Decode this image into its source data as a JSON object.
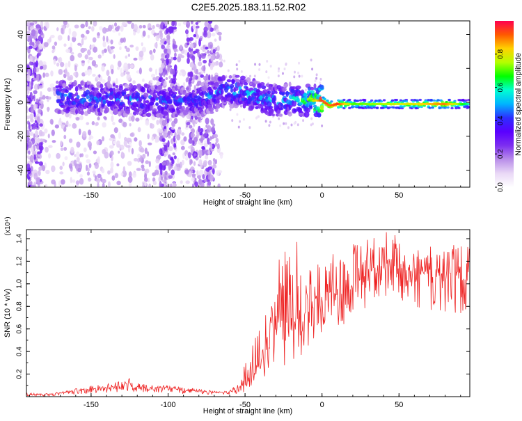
{
  "title": "C2E5.2025.183.11.52.R02",
  "colors": {
    "snr_line": "#ee2222",
    "spectrum_ramp": [
      "#ffffff",
      "#e9d8f6",
      "#b98ee9",
      "#7d2ff0",
      "#5a00ff",
      "#2d2dff",
      "#00b4ff",
      "#00ffd2",
      "#00ff00",
      "#b4ff00",
      "#ffd200",
      "#ff5a00",
      "#ff0050"
    ]
  },
  "chart_data": [
    {
      "type": "heatmap",
      "xlabel": "Height of straight line (km)",
      "ylabel": "Frequency (Hz)",
      "xlim": [
        -192,
        96
      ],
      "ylim": [
        -50,
        48
      ],
      "x_ticks": [
        -150,
        -100,
        -50,
        0,
        50
      ],
      "x_tick_labels": [
        "-150",
        "-100",
        "-50",
        "0",
        "50"
      ],
      "y_ticks": [
        -40,
        -20,
        0,
        20,
        40
      ],
      "y_tick_labels": [
        "-40",
        "-20",
        "0",
        "20",
        "40"
      ],
      "colorbar": {
        "label": "Normalized spectral amplitude",
        "range": [
          0.0,
          1.0
        ],
        "ticks": [
          0.0,
          0.2,
          0.4,
          0.6,
          0.8
        ],
        "tick_labels": [
          "0.0",
          "0.2",
          "0.4",
          "0.6",
          "0.8"
        ]
      },
      "ridge": {
        "description_x": [
          -170,
          -140,
          -110,
          -80,
          -65,
          -50,
          -40,
          -30,
          -20,
          -10,
          0,
          5,
          10,
          20,
          40,
          60,
          80,
          95
        ],
        "frequency_hz": [
          3,
          2,
          1,
          1,
          7,
          6,
          3,
          1,
          2,
          1,
          1,
          -2,
          -1,
          -1,
          -1,
          -1,
          -1,
          -1
        ],
        "peak_amplitude": [
          0.45,
          0.45,
          0.45,
          0.4,
          0.45,
          0.5,
          0.5,
          0.5,
          0.5,
          0.6,
          0.95,
          0.9,
          0.95,
          0.7,
          0.75,
          0.8,
          0.9,
          0.6
        ]
      }
    },
    {
      "type": "line",
      "xlabel": "Height of straight line (km)",
      "ylabel": "SNR (10 * v/v)",
      "y_scale_label": "(x10⁴)",
      "xlim": [
        -192,
        96
      ],
      "ylim": [
        0,
        1.48
      ],
      "x_ticks": [
        -150,
        -100,
        -50,
        0,
        50
      ],
      "x_tick_labels": [
        "-150",
        "-100",
        "-50",
        "0",
        "50"
      ],
      "y_ticks": [
        0.2,
        0.4,
        0.6,
        0.8,
        1.0,
        1.2,
        1.4
      ],
      "y_tick_labels": [
        "0.2",
        "0.4",
        "0.6",
        "0.8",
        "1.0",
        "1.2",
        "1.4"
      ],
      "series": [
        {
          "x": [
            -192,
            -180,
            -170,
            -160,
            -150,
            -140,
            -130,
            -125,
            -120,
            -110,
            -100,
            -90,
            -80,
            -70,
            -60,
            -55,
            -50,
            -45,
            -40,
            -35,
            -30,
            -25,
            -20,
            -15,
            -10,
            -5,
            0,
            5,
            10,
            15,
            20,
            25,
            30,
            35,
            40,
            45,
            50,
            55,
            60,
            65,
            70,
            75,
            80,
            85,
            90,
            96
          ],
          "y": [
            0.02,
            0.02,
            0.03,
            0.05,
            0.07,
            0.08,
            0.1,
            0.12,
            0.08,
            0.08,
            0.08,
            0.06,
            0.05,
            0.04,
            0.04,
            0.07,
            0.12,
            0.2,
            0.35,
            0.55,
            0.6,
            0.65,
            0.7,
            0.72,
            0.75,
            0.8,
            0.85,
            0.88,
            0.9,
            0.95,
            1.0,
            1.05,
            1.1,
            1.12,
            1.15,
            1.15,
            1.15,
            1.12,
            1.1,
            1.1,
            1.1,
            1.1,
            1.08,
            1.1,
            1.1,
            1.1
          ],
          "y_max": [
            0.03,
            0.03,
            0.04,
            0.07,
            0.1,
            0.12,
            0.14,
            0.17,
            0.12,
            0.1,
            0.1,
            0.08,
            0.07,
            0.05,
            0.05,
            0.12,
            0.3,
            0.5,
            1.0,
            1.1,
            1.2,
            1.4,
            1.2,
            1.45,
            1.2,
            1.3,
            1.2,
            1.25,
            1.3,
            1.3,
            1.35,
            1.4,
            1.45,
            1.4,
            1.48,
            1.45,
            1.42,
            1.4,
            1.38,
            1.3,
            1.35,
            1.32,
            1.3,
            1.35,
            1.38,
            1.35
          ],
          "y_min": [
            0.0,
            0.0,
            0.01,
            0.02,
            0.03,
            0.03,
            0.04,
            0.04,
            0.04,
            0.03,
            0.03,
            0.02,
            0.02,
            0.02,
            0.02,
            0.03,
            0.03,
            0.05,
            0.05,
            0.15,
            0.2,
            0.25,
            0.3,
            0.35,
            0.4,
            0.5,
            0.55,
            0.6,
            0.6,
            0.65,
            0.7,
            0.75,
            0.8,
            0.85,
            0.85,
            0.85,
            0.85,
            0.85,
            0.8,
            0.75,
            0.7,
            0.75,
            0.7,
            0.75,
            0.72,
            0.8
          ]
        }
      ]
    }
  ]
}
